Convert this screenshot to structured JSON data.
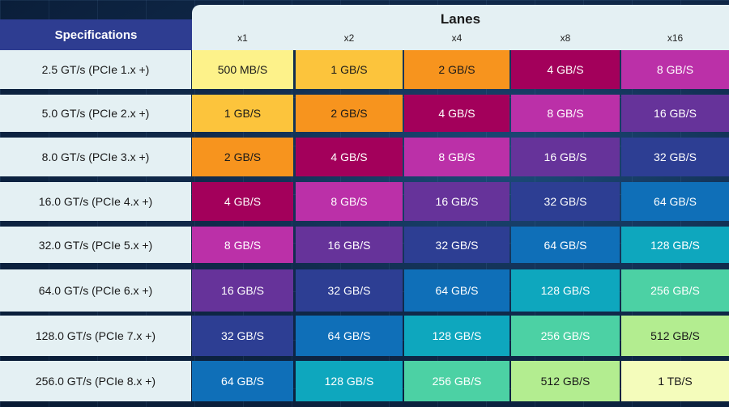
{
  "specifications_header": "Specifications",
  "lanes_header": "Lanes",
  "lanes": [
    "x1",
    "x2",
    "x4",
    "x8",
    "x16"
  ],
  "rows": [
    {
      "spec": "2.5 GT/s (PCIe 1.x +)",
      "values": [
        "500 MB/S",
        "1 GB/S",
        "2 GB/S",
        "4 GB/S",
        "8 GB/S"
      ]
    },
    {
      "spec": "5.0 GT/s (PCIe 2.x +)",
      "values": [
        "1 GB/S",
        "2 GB/S",
        "4 GB/S",
        "8 GB/S",
        "16 GB/S"
      ]
    },
    {
      "spec": "8.0 GT/s (PCIe 3.x +)",
      "values": [
        "2 GB/S",
        "4 GB/S",
        "8 GB/S",
        "16 GB/S",
        "32 GB/S"
      ]
    },
    {
      "spec": "16.0 GT/s (PCIe 4.x +)",
      "values": [
        "4 GB/S",
        "8 GB/S",
        "16 GB/S",
        "32 GB/S",
        "64 GB/S"
      ]
    },
    {
      "spec": "32.0 GT/s (PCIe 5.x +)",
      "values": [
        "8 GB/S",
        "16 GB/S",
        "32 GB/S",
        "64 GB/S",
        "128 GB/S"
      ]
    },
    {
      "spec": "64.0 GT/s (PCIe 6.x +)",
      "values": [
        "16 GB/S",
        "32 GB/S",
        "64 GB/S",
        "128 GB/S",
        "256 GB/S"
      ]
    },
    {
      "spec": "128.0 GT/s (PCIe 7.x +)",
      "values": [
        "32 GB/S",
        "64 GB/S",
        "128 GB/S",
        "256 GB/S",
        "512 GB/S"
      ]
    },
    {
      "spec": "256.0 GT/s (PCIe 8.x +)",
      "values": [
        "64 GB/S",
        "128 GB/S",
        "256 GB/S",
        "512 GB/S",
        "1 TB/S"
      ]
    }
  ],
  "tier_colors": [
    "#fdf28a",
    "#fcc43c",
    "#f7941e",
    "#a3005b",
    "#bb30a8",
    "#66339a",
    "#2d3e93",
    "#0f6fb8",
    "#0ea7be",
    "#4cd1a4",
    "#b3ed90",
    "#f4fcbb"
  ],
  "tier_text_colors": [
    "#1a1a1a",
    "#1a1a1a",
    "#1a1a1a",
    "#ffffff",
    "#ffffff",
    "#ffffff",
    "#ffffff",
    "#ffffff",
    "#ffffff",
    "#ffffff",
    "#1a1a1a",
    "#1a1a1a"
  ],
  "background_color": "#10294a",
  "row_label_bg": "#e4f0f3",
  "header_accent": "#2e3d91"
}
